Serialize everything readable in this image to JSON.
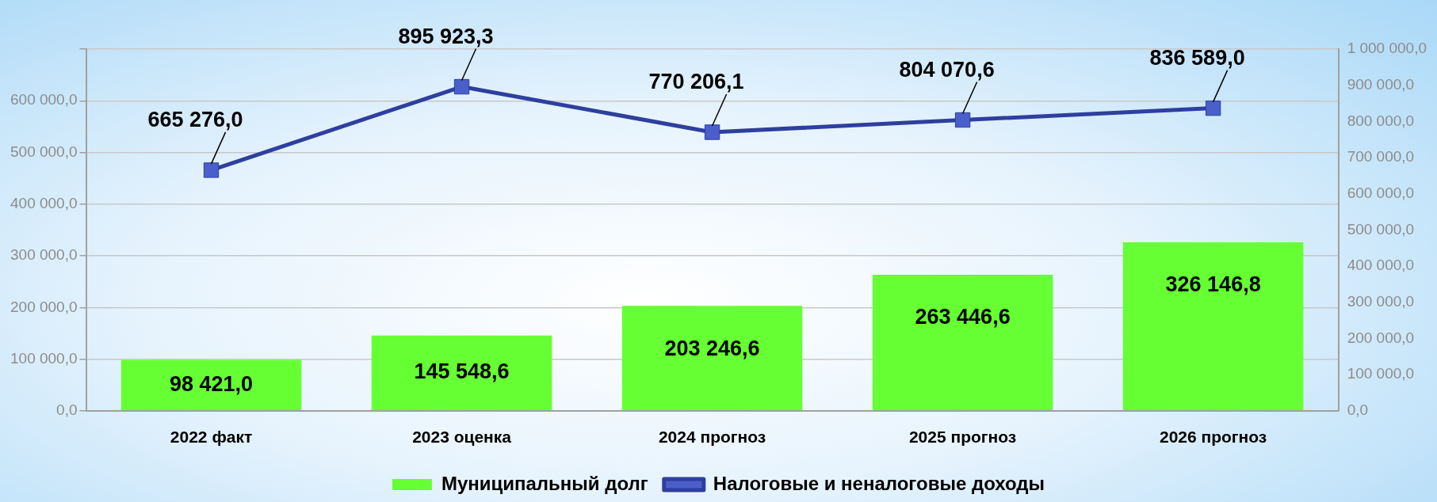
{
  "chart_data": {
    "type": "bar",
    "categories": [
      "2022 факт",
      "2023 оценка",
      "2024 прогноз",
      "2025 прогноз",
      "2026 прогноз"
    ],
    "series": [
      {
        "name": "Муниципальный долг",
        "color": "#66ff33",
        "values": [
          98421.0,
          145548.6,
          203246.6,
          263446.6,
          326146.8
        ],
        "value_labels": [
          "98 421,0",
          "145 548,6",
          "203 246,6",
          "263 446,6",
          "326 146,8"
        ]
      },
      {
        "name": "Налоговые и неналоговые доходы",
        "type": "line",
        "axis": "y2",
        "color": "#2e3f9e",
        "values": [
          665276.0,
          895923.3,
          770206.1,
          804070.6,
          836589.0
        ],
        "value_labels": [
          "665 276,0",
          "895 923,3",
          "770 206,1",
          "804 070,6",
          "836 589,0"
        ]
      }
    ],
    "ylim": [
      0,
      700000
    ],
    "yticks": [
      {
        "value": 0,
        "label": "0,0"
      },
      {
        "value": 100000,
        "label": "100 000,0"
      },
      {
        "value": 200000,
        "label": "200 000,0"
      },
      {
        "value": 300000,
        "label": "300 000,0"
      },
      {
        "value": 400000,
        "label": "400 000,0"
      },
      {
        "value": 500000,
        "label": "500 000,0"
      },
      {
        "value": 600000,
        "label": "600 000,0"
      },
      {
        "value": 700000,
        "label": null
      }
    ],
    "y2lim": [
      0,
      1000000
    ],
    "y2ticks": [
      {
        "value": 0,
        "label": "0,0"
      },
      {
        "value": 100000,
        "label": "100 000,0"
      },
      {
        "value": 200000,
        "label": "200 000,0"
      },
      {
        "value": 300000,
        "label": "300 000,0"
      },
      {
        "value": 400000,
        "label": "400 000,0"
      },
      {
        "value": 500000,
        "label": "500 000,0"
      },
      {
        "value": 600000,
        "label": "600 000,0"
      },
      {
        "value": 700000,
        "label": "700 000,0"
      },
      {
        "value": 800000,
        "label": "800 000,0"
      },
      {
        "value": 900000,
        "label": "900 000,0"
      },
      {
        "value": 1000000,
        "label": "1 000 000,0"
      }
    ],
    "grid": "y",
    "legend": "bottom",
    "marker": "square",
    "line_style": "solid"
  }
}
